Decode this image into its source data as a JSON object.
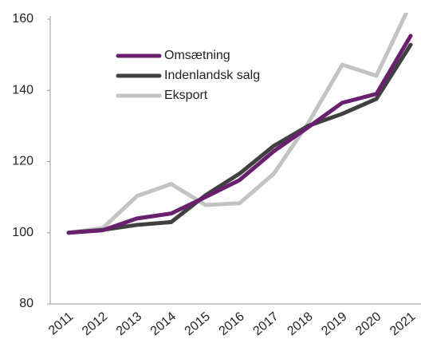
{
  "chart_data": {
    "type": "line",
    "categories": [
      "2011",
      "2012",
      "2013",
      "2014",
      "2015",
      "2016",
      "2017",
      "2018",
      "2019",
      "2020",
      "2021"
    ],
    "series": [
      {
        "name": "Omsætning",
        "color": "#68206f",
        "values": [
          100,
          100.7,
          104,
          105.4,
          110,
          114.8,
          122.9,
          129.6,
          136.5,
          139,
          155.3
        ]
      },
      {
        "name": "Indenlandsk salg",
        "color": "#404040",
        "values": [
          100,
          100.8,
          102.2,
          103,
          110.5,
          116.6,
          124.4,
          130,
          133.4,
          137.6,
          152.8
        ]
      },
      {
        "name": "Eksport",
        "color": "#c3c3c3",
        "values": [
          100,
          101.3,
          110.3,
          113.7,
          107.8,
          108.3,
          116.6,
          130.7,
          147.2,
          144.1,
          164.3
        ]
      }
    ],
    "ylim": [
      80,
      160
    ],
    "yticks": [
      80,
      100,
      120,
      140,
      160
    ],
    "legend": "upper left"
  }
}
